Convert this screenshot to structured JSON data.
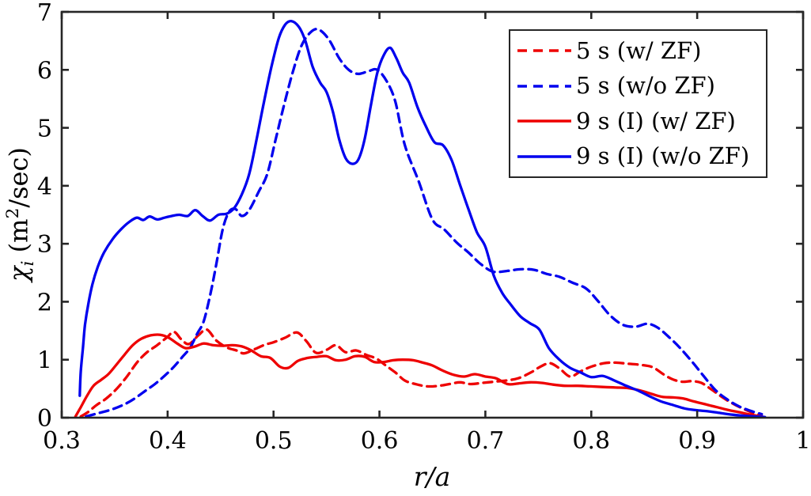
{
  "figure": {
    "background": "#ffffff",
    "axis_color": "#262626",
    "text_color": "#000000"
  },
  "labels": {
    "xlabel": "r/a",
    "ylabel": {
      "sym": "χ",
      "sub": "i",
      "unit_pre": " (m",
      "sup": "2",
      "unit_post": "/sec)"
    }
  },
  "chart_data": {
    "type": "line",
    "title": "",
    "xlabel": "r/a",
    "ylabel": "chi_i (m^2/sec)",
    "xlim": [
      0.3,
      1.0
    ],
    "ylim": [
      0,
      7
    ],
    "grid": false,
    "legend_position": "top-right",
    "xticks": [
      0.3,
      0.4,
      0.5,
      0.6,
      0.7,
      0.8,
      0.9,
      1
    ],
    "xtick_labels": [
      "0.3",
      "0.4",
      "0.5",
      "0.6",
      "0.7",
      "0.8",
      "0.9",
      "1"
    ],
    "yticks": [
      0,
      1,
      2,
      3,
      4,
      5,
      6,
      7
    ],
    "ytick_labels": [
      "0",
      "1",
      "2",
      "3",
      "4",
      "5",
      "6",
      "7"
    ],
    "series": [
      {
        "name": "5 s (w/ ZF)",
        "color": "#ee0000",
        "style": "dashed",
        "points": [
          [
            0.318,
            0.02
          ],
          [
            0.325,
            0.1
          ],
          [
            0.333,
            0.22
          ],
          [
            0.342,
            0.33
          ],
          [
            0.352,
            0.5
          ],
          [
            0.362,
            0.72
          ],
          [
            0.371,
            0.95
          ],
          [
            0.38,
            1.12
          ],
          [
            0.39,
            1.25
          ],
          [
            0.399,
            1.38
          ],
          [
            0.406,
            1.48
          ],
          [
            0.413,
            1.35
          ],
          [
            0.42,
            1.27
          ],
          [
            0.429,
            1.42
          ],
          [
            0.437,
            1.52
          ],
          [
            0.446,
            1.33
          ],
          [
            0.456,
            1.21
          ],
          [
            0.465,
            1.16
          ],
          [
            0.472,
            1.11
          ],
          [
            0.482,
            1.18
          ],
          [
            0.492,
            1.26
          ],
          [
            0.5,
            1.3
          ],
          [
            0.511,
            1.38
          ],
          [
            0.522,
            1.47
          ],
          [
            0.531,
            1.32
          ],
          [
            0.54,
            1.12
          ],
          [
            0.55,
            1.17
          ],
          [
            0.559,
            1.25
          ],
          [
            0.568,
            1.13
          ],
          [
            0.578,
            1.16
          ],
          [
            0.588,
            1.08
          ],
          [
            0.597,
            1.02
          ],
          [
            0.606,
            0.9
          ],
          [
            0.615,
            0.78
          ],
          [
            0.624,
            0.64
          ],
          [
            0.634,
            0.58
          ],
          [
            0.645,
            0.54
          ],
          [
            0.656,
            0.55
          ],
          [
            0.666,
            0.58
          ],
          [
            0.676,
            0.61
          ],
          [
            0.686,
            0.58
          ],
          [
            0.697,
            0.6
          ],
          [
            0.708,
            0.62
          ],
          [
            0.719,
            0.64
          ],
          [
            0.731,
            0.68
          ],
          [
            0.743,
            0.78
          ],
          [
            0.752,
            0.88
          ],
          [
            0.761,
            0.94
          ],
          [
            0.77,
            0.85
          ],
          [
            0.78,
            0.71
          ],
          [
            0.79,
            0.8
          ],
          [
            0.8,
            0.88
          ],
          [
            0.812,
            0.94
          ],
          [
            0.823,
            0.95
          ],
          [
            0.835,
            0.93
          ],
          [
            0.847,
            0.91
          ],
          [
            0.858,
            0.87
          ],
          [
            0.868,
            0.75
          ],
          [
            0.877,
            0.66
          ],
          [
            0.886,
            0.62
          ],
          [
            0.895,
            0.63
          ],
          [
            0.904,
            0.6
          ],
          [
            0.914,
            0.48
          ],
          [
            0.924,
            0.35
          ],
          [
            0.934,
            0.24
          ],
          [
            0.944,
            0.15
          ],
          [
            0.953,
            0.08
          ],
          [
            0.961,
            0.03
          ]
        ]
      },
      {
        "name": "5 s (w/o ZF)",
        "color": "#0000ee",
        "style": "dashed",
        "points": [
          [
            0.323,
            0.02
          ],
          [
            0.335,
            0.08
          ],
          [
            0.347,
            0.14
          ],
          [
            0.358,
            0.22
          ],
          [
            0.368,
            0.32
          ],
          [
            0.378,
            0.45
          ],
          [
            0.388,
            0.58
          ],
          [
            0.397,
            0.72
          ],
          [
            0.406,
            0.88
          ],
          [
            0.414,
            1.05
          ],
          [
            0.421,
            1.2
          ],
          [
            0.428,
            1.45
          ],
          [
            0.434,
            1.66
          ],
          [
            0.44,
            2.1
          ],
          [
            0.446,
            2.65
          ],
          [
            0.452,
            3.25
          ],
          [
            0.458,
            3.55
          ],
          [
            0.464,
            3.6
          ],
          [
            0.47,
            3.48
          ],
          [
            0.477,
            3.58
          ],
          [
            0.486,
            3.9
          ],
          [
            0.494,
            4.2
          ],
          [
            0.502,
            4.8
          ],
          [
            0.51,
            5.4
          ],
          [
            0.518,
            5.95
          ],
          [
            0.526,
            6.4
          ],
          [
            0.534,
            6.63
          ],
          [
            0.542,
            6.7
          ],
          [
            0.552,
            6.53
          ],
          [
            0.562,
            6.2
          ],
          [
            0.571,
            6.0
          ],
          [
            0.58,
            5.93
          ],
          [
            0.59,
            5.98
          ],
          [
            0.598,
            6.0
          ],
          [
            0.607,
            5.8
          ],
          [
            0.615,
            5.45
          ],
          [
            0.624,
            4.7
          ],
          [
            0.637,
            4.08
          ],
          [
            0.65,
            3.42
          ],
          [
            0.661,
            3.25
          ],
          [
            0.673,
            3.02
          ],
          [
            0.684,
            2.85
          ],
          [
            0.695,
            2.66
          ],
          [
            0.707,
            2.52
          ],
          [
            0.72,
            2.53
          ],
          [
            0.733,
            2.56
          ],
          [
            0.746,
            2.55
          ],
          [
            0.758,
            2.48
          ],
          [
            0.77,
            2.43
          ],
          [
            0.782,
            2.33
          ],
          [
            0.795,
            2.23
          ],
          [
            0.806,
            2.02
          ],
          [
            0.818,
            1.76
          ],
          [
            0.83,
            1.6
          ],
          [
            0.842,
            1.57
          ],
          [
            0.853,
            1.62
          ],
          [
            0.863,
            1.55
          ],
          [
            0.874,
            1.38
          ],
          [
            0.884,
            1.2
          ],
          [
            0.895,
            0.97
          ],
          [
            0.906,
            0.72
          ],
          [
            0.917,
            0.48
          ],
          [
            0.928,
            0.32
          ],
          [
            0.939,
            0.2
          ],
          [
            0.95,
            0.12
          ],
          [
            0.961,
            0.06
          ]
        ]
      },
      {
        "name": "9 s (I) (w/ ZF)",
        "color": "#ee0000",
        "style": "solid",
        "points": [
          [
            0.313,
            0.02
          ],
          [
            0.318,
            0.18
          ],
          [
            0.324,
            0.38
          ],
          [
            0.33,
            0.55
          ],
          [
            0.337,
            0.65
          ],
          [
            0.344,
            0.75
          ],
          [
            0.351,
            0.9
          ],
          [
            0.359,
            1.08
          ],
          [
            0.367,
            1.25
          ],
          [
            0.375,
            1.36
          ],
          [
            0.384,
            1.42
          ],
          [
            0.393,
            1.43
          ],
          [
            0.401,
            1.38
          ],
          [
            0.409,
            1.28
          ],
          [
            0.417,
            1.2
          ],
          [
            0.426,
            1.23
          ],
          [
            0.434,
            1.28
          ],
          [
            0.443,
            1.25
          ],
          [
            0.452,
            1.24
          ],
          [
            0.461,
            1.25
          ],
          [
            0.47,
            1.23
          ],
          [
            0.479,
            1.16
          ],
          [
            0.488,
            1.06
          ],
          [
            0.497,
            1.03
          ],
          [
            0.506,
            0.88
          ],
          [
            0.514,
            0.86
          ],
          [
            0.523,
            0.98
          ],
          [
            0.532,
            1.03
          ],
          [
            0.541,
            1.05
          ],
          [
            0.55,
            1.06
          ],
          [
            0.559,
            0.99
          ],
          [
            0.568,
            1.0
          ],
          [
            0.577,
            1.06
          ],
          [
            0.586,
            1.05
          ],
          [
            0.595,
            0.96
          ],
          [
            0.604,
            0.96
          ],
          [
            0.613,
            0.99
          ],
          [
            0.622,
            1.0
          ],
          [
            0.632,
            0.99
          ],
          [
            0.641,
            0.95
          ],
          [
            0.65,
            0.9
          ],
          [
            0.66,
            0.81
          ],
          [
            0.67,
            0.74
          ],
          [
            0.68,
            0.71
          ],
          [
            0.69,
            0.75
          ],
          [
            0.7,
            0.71
          ],
          [
            0.71,
            0.68
          ],
          [
            0.721,
            0.58
          ],
          [
            0.731,
            0.59
          ],
          [
            0.742,
            0.61
          ],
          [
            0.753,
            0.6
          ],
          [
            0.764,
            0.57
          ],
          [
            0.775,
            0.55
          ],
          [
            0.787,
            0.55
          ],
          [
            0.799,
            0.54
          ],
          [
            0.811,
            0.53
          ],
          [
            0.823,
            0.52
          ],
          [
            0.835,
            0.51
          ],
          [
            0.846,
            0.47
          ],
          [
            0.857,
            0.41
          ],
          [
            0.867,
            0.36
          ],
          [
            0.877,
            0.35
          ],
          [
            0.887,
            0.33
          ],
          [
            0.897,
            0.28
          ],
          [
            0.908,
            0.23
          ],
          [
            0.919,
            0.18
          ],
          [
            0.93,
            0.13
          ],
          [
            0.941,
            0.09
          ],
          [
            0.951,
            0.05
          ],
          [
            0.961,
            0.02
          ]
        ]
      },
      {
        "name": "9 s (I) (w/o ZF)",
        "color": "#0000ee",
        "style": "solid",
        "points": [
          [
            0.317,
            0.38
          ],
          [
            0.318,
            0.8
          ],
          [
            0.32,
            1.2
          ],
          [
            0.322,
            1.6
          ],
          [
            0.325,
            1.95
          ],
          [
            0.329,
            2.3
          ],
          [
            0.334,
            2.6
          ],
          [
            0.34,
            2.85
          ],
          [
            0.348,
            3.08
          ],
          [
            0.356,
            3.25
          ],
          [
            0.364,
            3.38
          ],
          [
            0.371,
            3.45
          ],
          [
            0.377,
            3.41
          ],
          [
            0.383,
            3.47
          ],
          [
            0.39,
            3.42
          ],
          [
            0.397,
            3.45
          ],
          [
            0.404,
            3.48
          ],
          [
            0.411,
            3.5
          ],
          [
            0.419,
            3.48
          ],
          [
            0.426,
            3.58
          ],
          [
            0.433,
            3.48
          ],
          [
            0.44,
            3.4
          ],
          [
            0.448,
            3.5
          ],
          [
            0.456,
            3.52
          ],
          [
            0.463,
            3.62
          ],
          [
            0.47,
            3.85
          ],
          [
            0.477,
            4.2
          ],
          [
            0.484,
            4.8
          ],
          [
            0.491,
            5.45
          ],
          [
            0.498,
            6.05
          ],
          [
            0.505,
            6.55
          ],
          [
            0.511,
            6.78
          ],
          [
            0.517,
            6.84
          ],
          [
            0.524,
            6.74
          ],
          [
            0.53,
            6.5
          ],
          [
            0.537,
            6.05
          ],
          [
            0.544,
            5.78
          ],
          [
            0.55,
            5.62
          ],
          [
            0.556,
            5.28
          ],
          [
            0.562,
            4.8
          ],
          [
            0.568,
            4.48
          ],
          [
            0.574,
            4.38
          ],
          [
            0.58,
            4.45
          ],
          [
            0.586,
            4.8
          ],
          [
            0.592,
            5.4
          ],
          [
            0.598,
            5.95
          ],
          [
            0.604,
            6.25
          ],
          [
            0.61,
            6.38
          ],
          [
            0.616,
            6.2
          ],
          [
            0.622,
            5.95
          ],
          [
            0.628,
            5.78
          ],
          [
            0.636,
            5.35
          ],
          [
            0.644,
            5.02
          ],
          [
            0.652,
            4.75
          ],
          [
            0.66,
            4.7
          ],
          [
            0.668,
            4.45
          ],
          [
            0.676,
            4.02
          ],
          [
            0.684,
            3.6
          ],
          [
            0.692,
            3.2
          ],
          [
            0.7,
            2.95
          ],
          [
            0.708,
            2.45
          ],
          [
            0.716,
            2.15
          ],
          [
            0.724,
            1.95
          ],
          [
            0.733,
            1.75
          ],
          [
            0.742,
            1.63
          ],
          [
            0.751,
            1.52
          ],
          [
            0.76,
            1.2
          ],
          [
            0.77,
            1.0
          ],
          [
            0.78,
            0.86
          ],
          [
            0.79,
            0.78
          ],
          [
            0.8,
            0.7
          ],
          [
            0.811,
            0.72
          ],
          [
            0.822,
            0.64
          ],
          [
            0.833,
            0.55
          ],
          [
            0.844,
            0.47
          ],
          [
            0.855,
            0.37
          ],
          [
            0.866,
            0.28
          ],
          [
            0.877,
            0.22
          ],
          [
            0.888,
            0.16
          ],
          [
            0.899,
            0.13
          ],
          [
            0.91,
            0.11
          ],
          [
            0.922,
            0.08
          ],
          [
            0.934,
            0.05
          ],
          [
            0.946,
            0.03
          ],
          [
            0.956,
            0.02
          ],
          [
            0.964,
            0.01
          ]
        ]
      }
    ]
  }
}
